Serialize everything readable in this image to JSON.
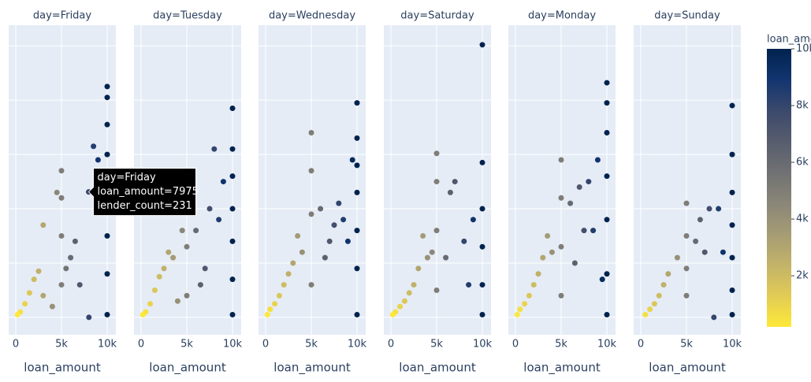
{
  "chart_data": [
    {
      "type": "scatter",
      "title": "day=Friday",
      "x_label": "loan_amount",
      "xlim": [
        -776,
        10948
      ],
      "ylim": [
        -32,
        538
      ],
      "xticks": [
        0,
        {
          "value": 5000,
          "label": "5k"
        },
        {
          "value": 10000,
          "label": "10k"
        }
      ],
      "yticks": [
        0,
        100,
        200,
        300,
        400,
        500
      ],
      "ytick_labels": false,
      "grid": true,
      "x": [
        10000,
        10000,
        10000,
        10000,
        10000,
        10000,
        10000,
        10000,
        7975,
        8500,
        9000,
        5000,
        5000,
        5000,
        5000,
        4500,
        3000,
        2500,
        2000,
        1500,
        1000,
        500,
        200,
        6000,
        7000,
        8000,
        4000,
        3000,
        6500,
        5500
      ],
      "y": [
        425,
        405,
        355,
        300,
        250,
        150,
        80,
        5,
        231,
        315,
        290,
        270,
        220,
        150,
        60,
        230,
        170,
        85,
        70,
        45,
        25,
        10,
        5,
        110,
        60,
        0,
        20,
        40,
        140,
        90
      ]
    },
    {
      "type": "scatter",
      "title": "day=Tuesday",
      "x_label": "loan_amount",
      "xlim": [
        -776,
        10948
      ],
      "ylim": [
        -32,
        538
      ],
      "xticks": [
        0,
        {
          "value": 5000,
          "label": "5k"
        },
        {
          "value": 10000,
          "label": "10k"
        }
      ],
      "yticks": [
        0,
        100,
        200,
        300,
        400,
        500
      ],
      "ytick_labels": false,
      "grid": true,
      "x": [
        10000,
        10000,
        10000,
        10000,
        10000,
        10000,
        10000,
        8000,
        9000,
        8500,
        5000,
        5000,
        5000,
        5000,
        4500,
        3000,
        2500,
        2000,
        1500,
        1000,
        500,
        200,
        6000,
        7000,
        6500,
        4000,
        3500,
        7500
      ],
      "y": [
        385,
        310,
        260,
        200,
        140,
        70,
        5,
        310,
        250,
        180,
        270,
        210,
        130,
        40,
        160,
        120,
        90,
        75,
        50,
        25,
        10,
        5,
        160,
        90,
        60,
        30,
        110,
        200
      ]
    },
    {
      "type": "scatter",
      "title": "day=Wednesday",
      "x_label": "loan_amount",
      "xlim": [
        -776,
        10948
      ],
      "ylim": [
        -32,
        538
      ],
      "xticks": [
        0,
        {
          "value": 5000,
          "label": "5k"
        },
        {
          "value": 10000,
          "label": "10k"
        }
      ],
      "yticks": [
        0,
        100,
        200,
        300,
        400,
        500
      ],
      "ytick_labels": false,
      "grid": true,
      "x": [
        10000,
        10000,
        10000,
        10000,
        10000,
        10000,
        10000,
        9500,
        8000,
        8500,
        9000,
        5000,
        5000,
        5000,
        5000,
        6000,
        7000,
        4000,
        3000,
        2500,
        2000,
        1500,
        1000,
        500,
        200,
        6500,
        7500,
        3500
      ],
      "y": [
        395,
        330,
        280,
        230,
        160,
        90,
        5,
        290,
        210,
        180,
        140,
        340,
        270,
        190,
        60,
        200,
        140,
        120,
        100,
        80,
        60,
        40,
        25,
        15,
        5,
        110,
        170,
        150
      ]
    },
    {
      "type": "scatter",
      "title": "day=Saturday",
      "x_label": "loan_amount",
      "xlim": [
        -776,
        10948
      ],
      "ylim": [
        -32,
        538
      ],
      "xticks": [
        0,
        {
          "value": 5000,
          "label": "5k"
        },
        {
          "value": 10000,
          "label": "10k"
        }
      ],
      "yticks": [
        0,
        100,
        200,
        300,
        400,
        500
      ],
      "ytick_labels": false,
      "grid": true,
      "x": [
        10000,
        10000,
        10000,
        10000,
        10000,
        10000,
        9000,
        8000,
        7000,
        5000,
        5000,
        5000,
        5000,
        4500,
        4000,
        3000,
        2500,
        2000,
        1500,
        1000,
        500,
        200,
        6500,
        8500,
        6000,
        3500
      ],
      "y": [
        502,
        285,
        200,
        130,
        60,
        5,
        180,
        140,
        250,
        302,
        250,
        160,
        50,
        120,
        110,
        90,
        60,
        45,
        30,
        20,
        10,
        5,
        230,
        60,
        110,
        150
      ]
    },
    {
      "type": "scatter",
      "title": "day=Monday",
      "x_label": "loan_amount",
      "xlim": [
        -776,
        10948
      ],
      "ylim": [
        -32,
        538
      ],
      "xticks": [
        0,
        {
          "value": 5000,
          "label": "5k"
        },
        {
          "value": 10000,
          "label": "10k"
        }
      ],
      "yticks": [
        0,
        100,
        200,
        300,
        400,
        500
      ],
      "ytick_labels": false,
      "grid": true,
      "x": [
        10000,
        10000,
        10000,
        10000,
        10000,
        10000,
        10000,
        9000,
        8000,
        8500,
        5000,
        5000,
        5000,
        5000,
        6000,
        7000,
        7500,
        4000,
        3000,
        2500,
        2000,
        1500,
        1000,
        500,
        200,
        6500,
        9500,
        3500
      ],
      "y": [
        432,
        395,
        340,
        260,
        180,
        80,
        5,
        290,
        250,
        160,
        290,
        220,
        130,
        40,
        210,
        240,
        160,
        120,
        110,
        80,
        60,
        40,
        25,
        15,
        5,
        100,
        70,
        150
      ]
    },
    {
      "type": "scatter",
      "title": "day=Sunday",
      "x_label": "loan_amount",
      "xlim": [
        -776,
        10948
      ],
      "ylim": [
        -32,
        538
      ],
      "xticks": [
        0,
        {
          "value": 5000,
          "label": "5k"
        },
        {
          "value": 10000,
          "label": "10k"
        }
      ],
      "yticks": [
        0,
        100,
        200,
        300,
        400,
        500
      ],
      "ytick_labels": false,
      "grid": true,
      "x": [
        10000,
        10000,
        10000,
        10000,
        10000,
        10000,
        10000,
        7500,
        8000,
        9000,
        6500,
        5000,
        5000,
        5000,
        5000,
        4000,
        3000,
        2500,
        2000,
        1500,
        1000,
        500,
        8500,
        6000,
        7000
      ],
      "y": [
        390,
        300,
        230,
        170,
        110,
        50,
        5,
        200,
        0,
        120,
        180,
        210,
        150,
        90,
        40,
        110,
        80,
        60,
        40,
        25,
        15,
        5,
        200,
        140,
        120
      ]
    }
  ],
  "colorbar": {
    "title": "loan_amount",
    "clim": [
      200,
      10000
    ],
    "colorscale": [
      "#fee838",
      "#e1cc55",
      "#c3b369",
      "#a59c74",
      "#8a8678",
      "#707173",
      "#575d6d",
      "#3b496c",
      "#123570",
      "#00224e"
    ],
    "ticks": [
      {
        "value": 2000,
        "label": "2k"
      },
      {
        "value": 4000,
        "label": "4k"
      },
      {
        "value": 6000,
        "label": "6k"
      },
      {
        "value": 8000,
        "label": "8k"
      },
      {
        "value": 10000,
        "label": "10k"
      }
    ]
  },
  "hover": {
    "panel": 0,
    "point": 8,
    "lines": [
      "day=Friday",
      "loan_amount=7975",
      "lender_count=231"
    ]
  }
}
